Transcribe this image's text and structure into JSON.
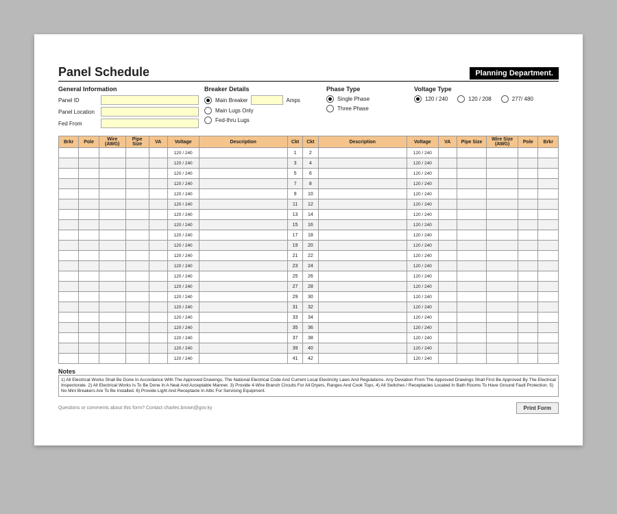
{
  "title": "Panel Schedule",
  "badge": "Planning Department.",
  "sections": {
    "gi": {
      "h": "General Information",
      "panel_id": "Panel ID",
      "panel_loc": "Panel Location",
      "fed_from": "Fed From"
    },
    "bd": {
      "h": "Breaker Details",
      "amps": "Amps",
      "opts": [
        "Main Breaker",
        "Main Lugs Only",
        "Fed-thru Lugs"
      ],
      "selected": 0
    },
    "pt": {
      "h": "Phase Type",
      "opts": [
        "Single Phase",
        "Three Phase"
      ],
      "selected": 0
    },
    "vt": {
      "h": "Voltage Type",
      "opts": [
        "120 / 240",
        "120 / 208",
        "277/ 480"
      ],
      "selected": 0
    }
  },
  "columns": {
    "brkr": "Brkr",
    "pole": "Pole",
    "awg": "Wire (AWG)",
    "pipe": "Pipe Size",
    "va": "VA",
    "voltage": "Voltage",
    "desc": "Description",
    "ckt": "Ckt",
    "pipesize": "Pipe Size",
    "wiresize": "Wire Size (AWG)"
  },
  "voltage_cell": "120 / 240",
  "row_count": 21,
  "notes_h": "Notes",
  "notes": "1) All Electrical Works Shall Be Done In Accordance With The Approved Drawings, The National Electrical Code And Current Local Electricity Laws And Regulations. Any Deviation From The Approved Drawings Shall First Be Approved By The Electrical Inspectorate.  2) All Electrical Works Is To Be Done In A Neat And Acceptable Manner.  3) Provide 4-Wire Branch Circuits For All Dryers, Ranges And Cook Tops.  4) All Switches / Receptacles Located In Bath Rooms To Have Ground Fault Protection.  5) No Mini Breakers Are To Be Installed.  6) Provide Light And Receptacle In Attic For Servicing Equipment.",
  "contact": "Questions or comments about this form? Contact charles.brown@gov.ky",
  "print": "Print Form",
  "colors": {
    "header_bg": "#f4c48c",
    "input_bg": "#ffffcc",
    "alt_row": "#f2f2f2"
  }
}
